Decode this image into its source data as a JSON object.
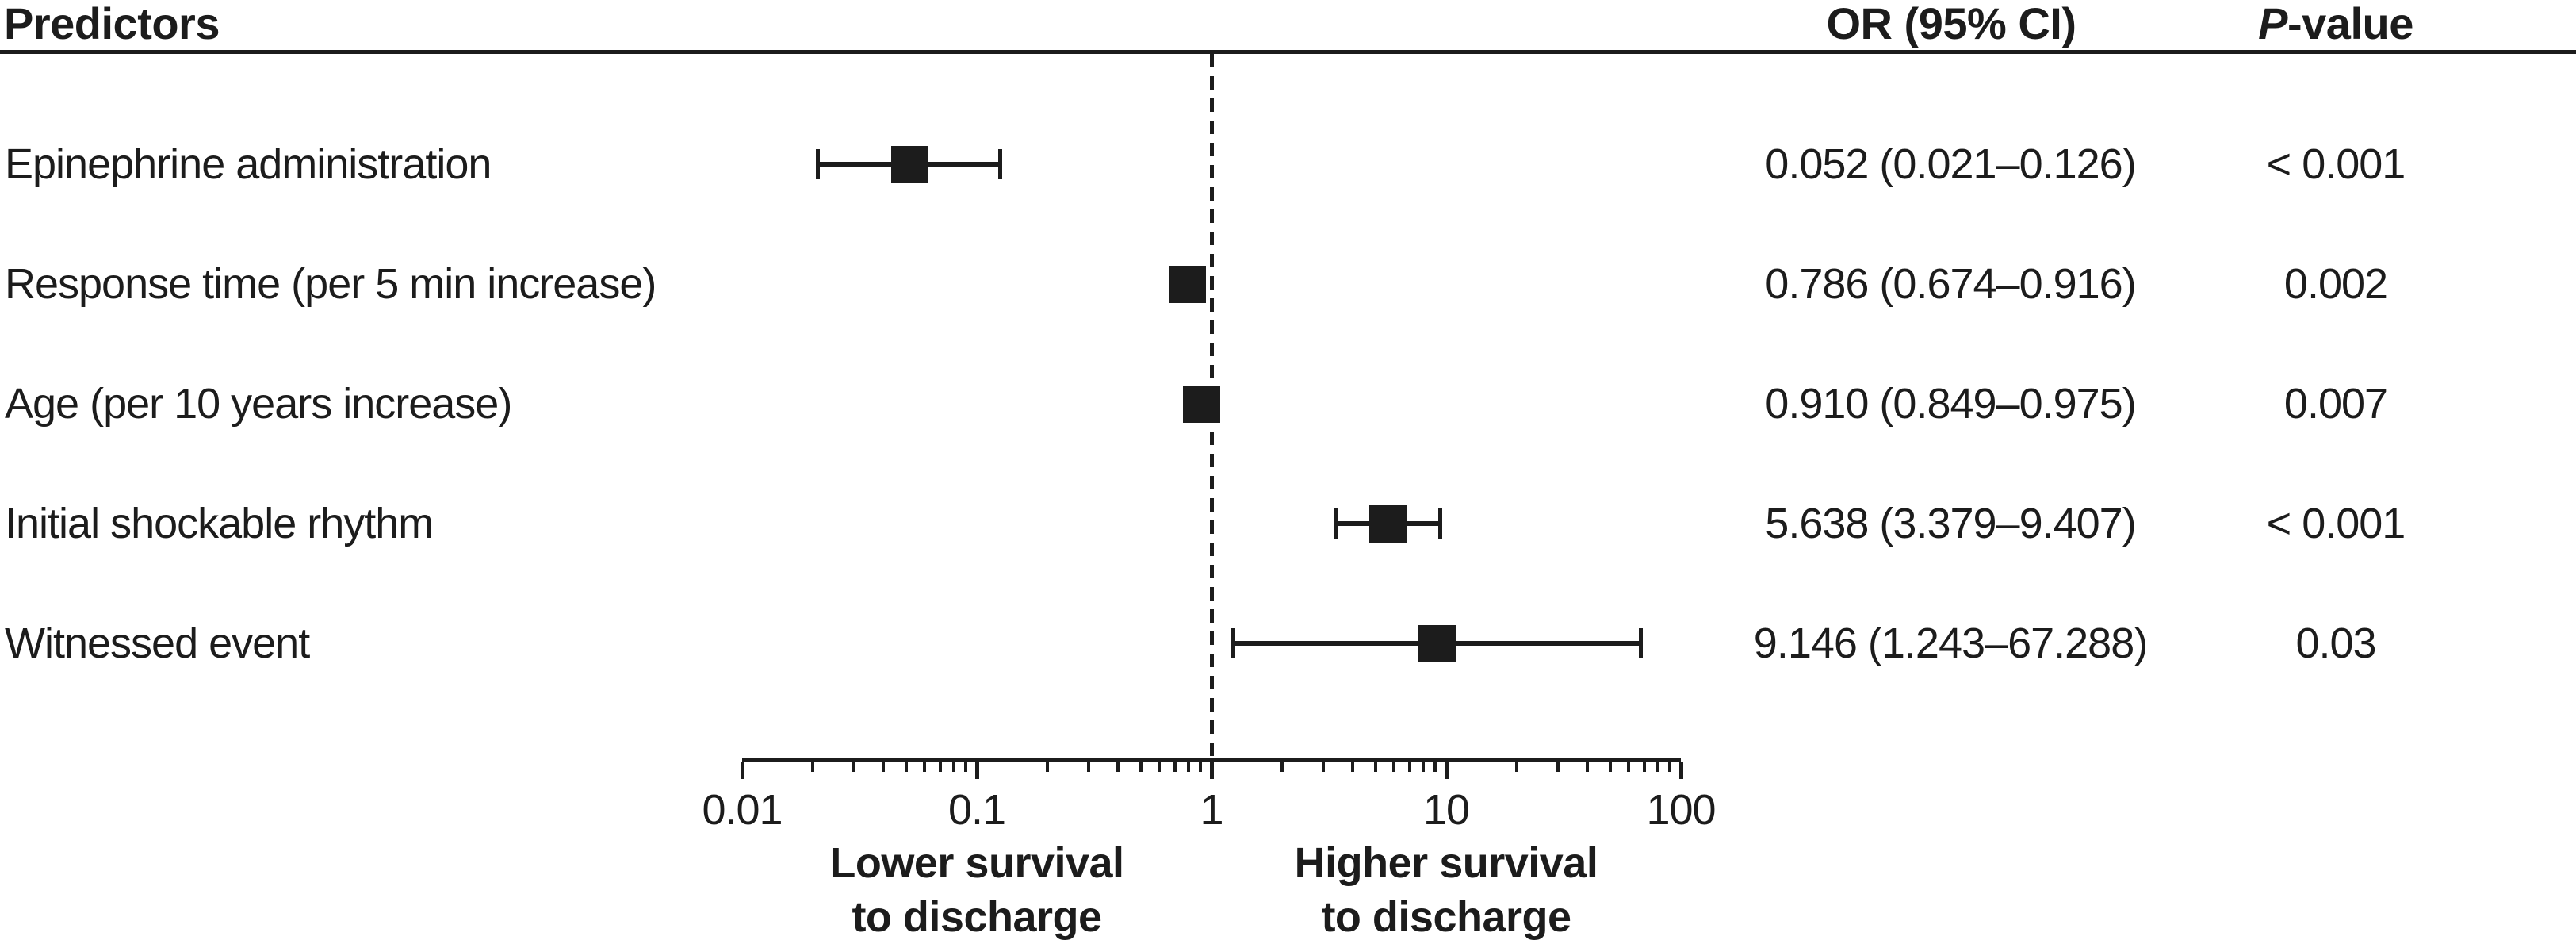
{
  "header": {
    "predictors": "Predictors",
    "or_ci": "OR (95% CI)",
    "p_italic": "P",
    "p_rest": "-value"
  },
  "colors": {
    "ink": "#1c1c1c",
    "background": "#ffffff"
  },
  "chart_data": {
    "type": "forest",
    "x_scale": "log10",
    "xlim": [
      0.01,
      100
    ],
    "x_ticks": [
      0.01,
      0.1,
      1,
      10,
      100
    ],
    "x_tick_labels": [
      "0.01",
      "0.1",
      "1",
      "10",
      "100"
    ],
    "reference_line": 1,
    "grid": false,
    "axis_captions": {
      "left_line1": "Lower survival",
      "left_line2": "to discharge",
      "right_line1": "Higher survival",
      "right_line2": "to discharge"
    },
    "rows": [
      {
        "label": "Epinephrine administration",
        "or": 0.052,
        "ci_low": 0.021,
        "ci_high": 0.126,
        "or_ci_text": "0.052 (0.021–0.126)",
        "p_text": "< 0.001"
      },
      {
        "label": "Response time (per 5 min increase)",
        "or": 0.786,
        "ci_low": 0.674,
        "ci_high": 0.916,
        "or_ci_text": "0.786 (0.674–0.916)",
        "p_text": "0.002"
      },
      {
        "label": "Age (per 10 years increase)",
        "or": 0.91,
        "ci_low": 0.849,
        "ci_high": 0.975,
        "or_ci_text": "0.910 (0.849–0.975)",
        "p_text": "0.007"
      },
      {
        "label": "Initial shockable rhythm",
        "or": 5.638,
        "ci_low": 3.379,
        "ci_high": 9.407,
        "or_ci_text": "5.638 (3.379–9.407)",
        "p_text": "< 0.001"
      },
      {
        "label": "Witnessed event",
        "or": 9.146,
        "ci_low": 1.243,
        "ci_high": 67.288,
        "or_ci_text": "9.146 (1.243–67.288)",
        "p_text": "0.03"
      }
    ]
  }
}
